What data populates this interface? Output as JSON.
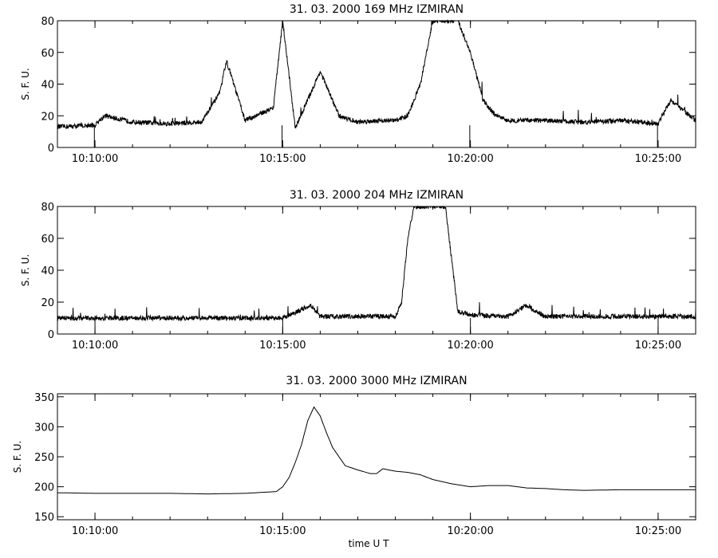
{
  "chart_data": [
    {
      "type": "line",
      "title": "31.  03.  2000    169  MHz     IZMIRAN",
      "ylabel": "S. F. U.",
      "xlabel": "",
      "xlim": [
        "10:09:00",
        "10:26:00"
      ],
      "ylim": [
        0,
        80
      ],
      "yticks": [
        0,
        20,
        40,
        60,
        80
      ],
      "xticks": [
        "10:10:00",
        "10:15:00",
        "10:20:00",
        "10:25:00"
      ],
      "baseline": 14,
      "series": [
        {
          "x": [
            "10:09:00",
            "10:10:00",
            "10:10:15",
            "10:11:00",
            "10:12:00",
            "10:12:50",
            "10:13:00",
            "10:13:20",
            "10:13:30",
            "10:14:00",
            "10:14:45",
            "10:15:00",
            "10:15:20",
            "10:15:40",
            "10:16:00",
            "10:16:30",
            "10:17:00",
            "10:17:30",
            "10:18:00",
            "10:18:20",
            "10:18:40",
            "10:19:00",
            "10:19:20",
            "10:19:40",
            "10:20:00",
            "10:20:20",
            "10:20:40",
            "10:21:00",
            "10:22:00",
            "10:23:00",
            "10:24:00",
            "10:25:00",
            "10:25:20",
            "10:26:00"
          ],
          "y": [
            13,
            14,
            20,
            16,
            15,
            16,
            22,
            35,
            55,
            17,
            25,
            80,
            12,
            30,
            48,
            20,
            16,
            17,
            17,
            20,
            40,
            80,
            80,
            80,
            60,
            30,
            20,
            17,
            17,
            16,
            17,
            15,
            30,
            17
          ]
        }
      ]
    },
    {
      "type": "line",
      "title": "31.  03.  2000    204  MHz     IZMIRAN",
      "ylabel": "S. F. U.",
      "xlabel": "",
      "xlim": [
        "10:09:00",
        "10:26:00"
      ],
      "ylim": [
        0,
        80
      ],
      "yticks": [
        0,
        20,
        40,
        60,
        80
      ],
      "xticks": [
        "10:10:00",
        "10:15:00",
        "10:20:00",
        "10:25:00"
      ],
      "baseline": 10,
      "series": [
        {
          "x": [
            "10:09:00",
            "10:10:00",
            "10:11:00",
            "10:12:00",
            "10:13:00",
            "10:14:00",
            "10:15:00",
            "10:15:45",
            "10:16:00",
            "10:17:00",
            "10:18:00",
            "10:18:10",
            "10:18:20",
            "10:18:30",
            "10:18:40",
            "10:18:50",
            "10:19:00",
            "10:19:10",
            "10:19:20",
            "10:19:40",
            "10:20:00",
            "10:21:00",
            "10:21:30",
            "10:22:00",
            "10:23:00",
            "10:24:00",
            "10:25:00",
            "10:26:00"
          ],
          "y": [
            10,
            10,
            10,
            10,
            10,
            10,
            10,
            18,
            11,
            11,
            11,
            20,
            60,
            80,
            80,
            80,
            80,
            80,
            80,
            14,
            12,
            11,
            18,
            11,
            11,
            11,
            11,
            11
          ]
        }
      ]
    },
    {
      "type": "line",
      "title": "31.  03.  2000    3000  MHz     IZMIRAN",
      "ylabel": "S. F. U.",
      "xlabel": "time   U T",
      "xlim": [
        "10:09:00",
        "10:26:00"
      ],
      "ylim": [
        145,
        355
      ],
      "yticks": [
        150,
        200,
        250,
        300,
        350
      ],
      "xticks": [
        "10:10:00",
        "10:15:00",
        "10:20:00",
        "10:25:00"
      ],
      "series": [
        {
          "x": [
            "10:09:00",
            "10:10:00",
            "10:11:00",
            "10:12:00",
            "10:13:00",
            "10:14:00",
            "10:14:50",
            "10:15:00",
            "10:15:10",
            "10:15:20",
            "10:15:30",
            "10:15:40",
            "10:15:50",
            "10:16:00",
            "10:16:10",
            "10:16:20",
            "10:16:40",
            "10:17:00",
            "10:17:20",
            "10:17:30",
            "10:17:40",
            "10:18:00",
            "10:18:20",
            "10:18:40",
            "10:19:00",
            "10:19:30",
            "10:20:00",
            "10:20:30",
            "10:21:00",
            "10:21:30",
            "10:22:00",
            "10:22:30",
            "10:23:00",
            "10:24:00",
            "10:25:00",
            "10:26:00"
          ],
          "y": [
            190,
            189,
            189,
            189,
            188,
            189,
            192,
            200,
            215,
            240,
            270,
            310,
            333,
            318,
            290,
            265,
            235,
            228,
            222,
            222,
            230,
            226,
            224,
            220,
            212,
            205,
            200,
            202,
            202,
            198,
            197,
            195,
            194,
            195,
            195,
            195
          ]
        }
      ]
    }
  ]
}
